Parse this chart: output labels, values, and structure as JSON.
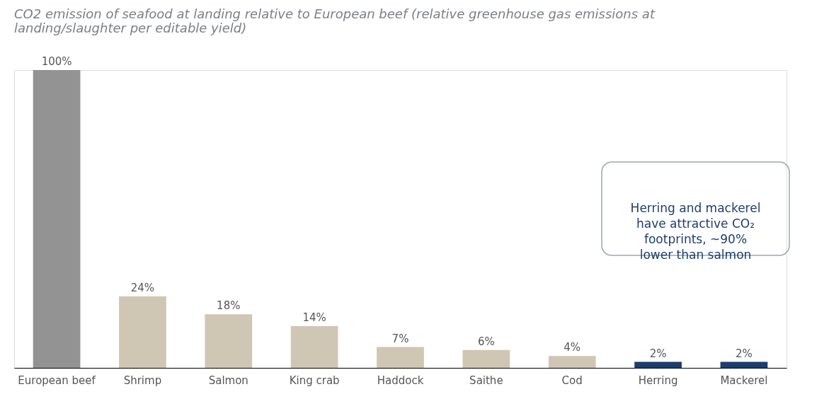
{
  "chart_data": {
    "type": "bar",
    "title": "CO2 emission of seafood at landing relative to European beef (relative greenhouse gas emissions at landing/slaughter per editable yield)",
    "categories": [
      "European beef",
      "Shrimp",
      "Salmon",
      "King crab",
      "Haddock",
      "Saithe",
      "Cod",
      "Herring",
      "Mackerel"
    ],
    "values": [
      100,
      24,
      18,
      14,
      7,
      6,
      4,
      2,
      2
    ],
    "colors": [
      "#939393",
      "#cfc6b4",
      "#cfc6b4",
      "#cfc6b4",
      "#cfc6b4",
      "#cfc6b4",
      "#cfc6b4",
      "#1d3d6e",
      "#1d3d6e"
    ],
    "value_labels": [
      "100%",
      "24%",
      "18%",
      "14%",
      "7%",
      "6%",
      "4%",
      "2%",
      "2%"
    ],
    "annotations": [
      "Herring and mackerel have attractive CO₂ footprints, ~90% lower than salmon"
    ],
    "grid": false,
    "legend": false
  }
}
